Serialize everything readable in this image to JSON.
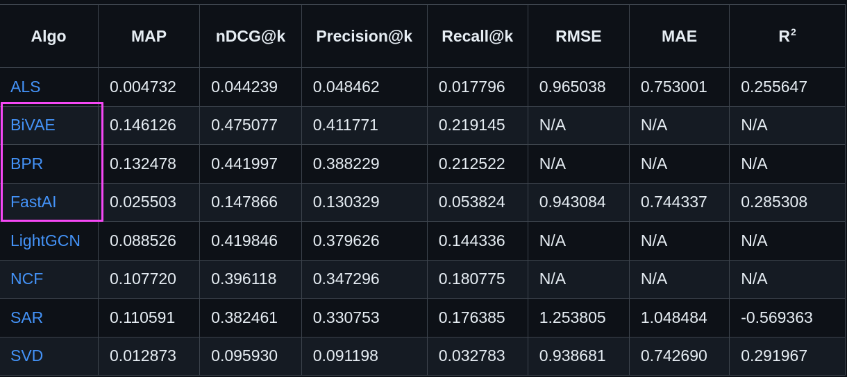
{
  "table": {
    "headers": [
      "Algo",
      "MAP",
      "nDCG@k",
      "Precision@k",
      "Recall@k",
      "RMSE",
      "MAE",
      "R",
      "2"
    ],
    "rows": [
      {
        "algo": "ALS",
        "map": "0.004732",
        "ndcg": "0.044239",
        "precision": "0.048462",
        "recall": "0.017796",
        "rmse": "0.965038",
        "mae": "0.753001",
        "r2": "0.255647"
      },
      {
        "algo": "BiVAE",
        "map": "0.146126",
        "ndcg": "0.475077",
        "precision": "0.411771",
        "recall": "0.219145",
        "rmse": "N/A",
        "mae": "N/A",
        "r2": "N/A"
      },
      {
        "algo": "BPR",
        "map": "0.132478",
        "ndcg": "0.441997",
        "precision": "0.388229",
        "recall": "0.212522",
        "rmse": "N/A",
        "mae": "N/A",
        "r2": "N/A"
      },
      {
        "algo": "FastAI",
        "map": "0.025503",
        "ndcg": "0.147866",
        "precision": "0.130329",
        "recall": "0.053824",
        "rmse": "0.943084",
        "mae": "0.744337",
        "r2": "0.285308"
      },
      {
        "algo": "LightGCN",
        "map": "0.088526",
        "ndcg": "0.419846",
        "precision": "0.379626",
        "recall": "0.144336",
        "rmse": "N/A",
        "mae": "N/A",
        "r2": "N/A"
      },
      {
        "algo": "NCF",
        "map": "0.107720",
        "ndcg": "0.396118",
        "precision": "0.347296",
        "recall": "0.180775",
        "rmse": "N/A",
        "mae": "N/A",
        "r2": "N/A"
      },
      {
        "algo": "SAR",
        "map": "0.110591",
        "ndcg": "0.382461",
        "precision": "0.330753",
        "recall": "0.176385",
        "rmse": "1.253805",
        "mae": "1.048484",
        "r2": "-0.569363"
      },
      {
        "algo": "SVD",
        "map": "0.012873",
        "ndcg": "0.095930",
        "precision": "0.091198",
        "recall": "0.032783",
        "rmse": "0.938681",
        "mae": "0.742690",
        "r2": "0.291967"
      }
    ]
  },
  "colors": {
    "background": "#0d1117",
    "row_alt": "#151b23",
    "border": "#3d444d",
    "text": "#e6edf3",
    "link": "#4493f8",
    "highlight": "#f548f5"
  }
}
